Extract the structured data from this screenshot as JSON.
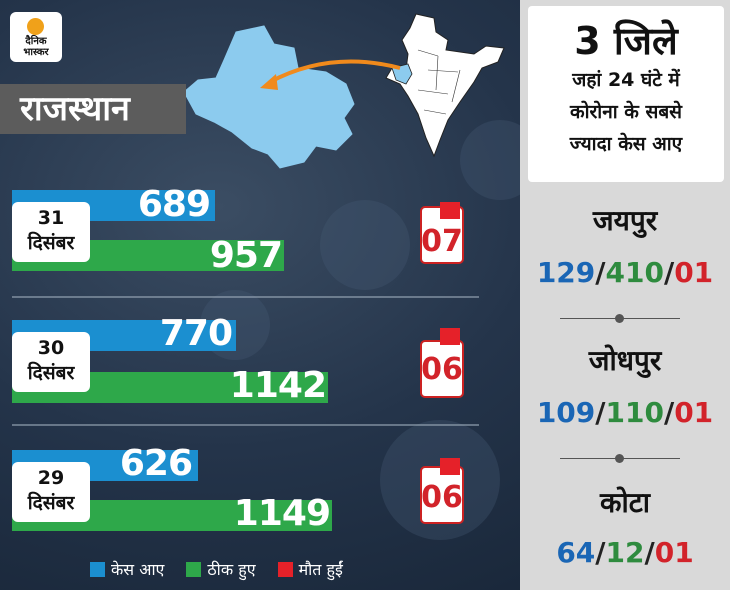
{
  "logo": {
    "line1": "दैनिक",
    "line2": "भास्कर"
  },
  "state": "राजस्थान",
  "chart_data": {
    "type": "bar",
    "categories": [
      "31 दिसंबर",
      "30 दिसंबर",
      "29 दिसंबर"
    ],
    "series": [
      {
        "name": "केस आए",
        "values": [
          689,
          770,
          626
        ]
      },
      {
        "name": "ठीक हुए",
        "values": [
          957,
          1142,
          1149
        ]
      },
      {
        "name": "मौत हुईं",
        "values": [
          7,
          6,
          6
        ]
      }
    ]
  },
  "days": [
    {
      "day": "31",
      "month": "दिसंबर",
      "cases": "689",
      "recovered": "957",
      "deaths": "07"
    },
    {
      "day": "30",
      "month": "दिसंबर",
      "cases": "770",
      "recovered": "1142",
      "deaths": "06"
    },
    {
      "day": "29",
      "month": "दिसंबर",
      "cases": "626",
      "recovered": "1149",
      "deaths": "06"
    }
  ],
  "legend": {
    "cases": "केस आए",
    "recovered": "ठीक हुए",
    "deaths": "मौत हुईं"
  },
  "colors": {
    "cases": "#1b8fd0",
    "recovered": "#2ea84a",
    "deaths": "#e52129"
  },
  "panel": {
    "count": "3 जिले",
    "line1": "जहां 24 घंटे में",
    "line2": "कोरोना के सबसे",
    "line3": "ज्यादा केस आए",
    "districts": [
      {
        "name": "जयपुर",
        "cases": "129",
        "recovered": "410",
        "deaths": "01"
      },
      {
        "name": "जोधपुर",
        "cases": "109",
        "recovered": "110",
        "deaths": "01"
      },
      {
        "name": "कोटा",
        "cases": "64",
        "recovered": "12",
        "deaths": "01"
      }
    ]
  }
}
